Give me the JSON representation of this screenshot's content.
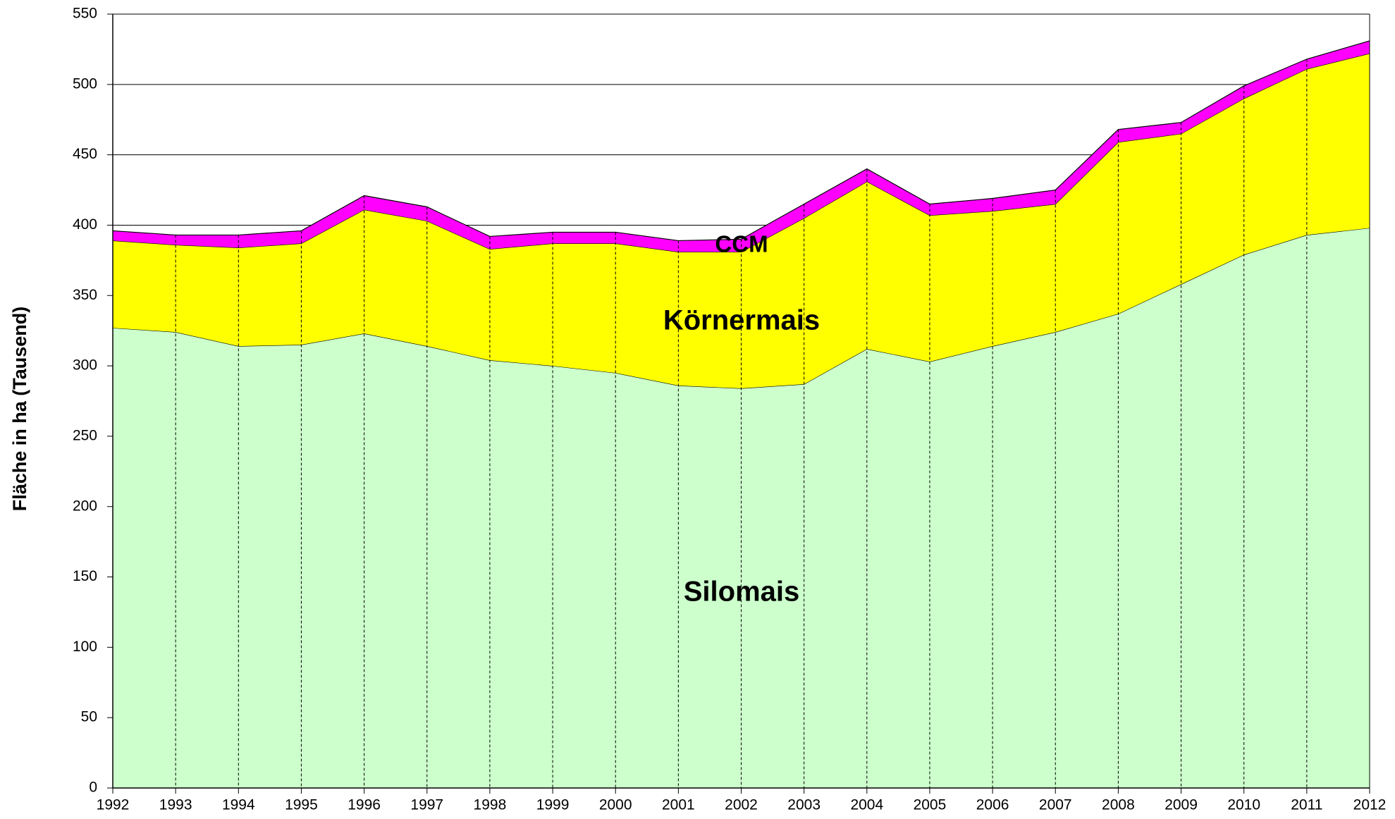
{
  "chart_data": {
    "type": "area",
    "stacked": true,
    "y_label": "Fläche in ha (Tausend)",
    "categories": [
      "1992",
      "1993",
      "1994",
      "1995",
      "1996",
      "1997",
      "1998",
      "1999",
      "2000",
      "2001",
      "2002",
      "2003",
      "2004",
      "2005",
      "2006",
      "2007",
      "2008",
      "2009",
      "2010",
      "2011",
      "2012"
    ],
    "series": [
      {
        "name": "Silomais",
        "color": "#ccffcc",
        "values": [
          327,
          324,
          314,
          315,
          323,
          314,
          304,
          300,
          295,
          286,
          284,
          287,
          312,
          303,
          314,
          324,
          337,
          358,
          379,
          393,
          398
        ]
      },
      {
        "name": "Körnermais",
        "color": "#ffff00",
        "values": [
          62,
          62,
          70,
          72,
          88,
          89,
          79,
          87,
          92,
          95,
          97,
          118,
          119,
          104,
          96,
          91,
          122,
          107,
          111,
          118,
          124
        ]
      },
      {
        "name": "CCM",
        "color": "#ff00ff",
        "values": [
          7,
          7,
          9,
          9,
          10,
          10,
          9,
          8,
          8,
          8,
          9,
          10,
          9,
          8,
          9,
          10,
          9,
          8,
          9,
          7,
          9
        ]
      }
    ],
    "ylim": [
      0,
      550
    ],
    "yticks": [
      0,
      50,
      100,
      150,
      200,
      250,
      300,
      350,
      400,
      450,
      500,
      550
    ],
    "grid": true
  }
}
